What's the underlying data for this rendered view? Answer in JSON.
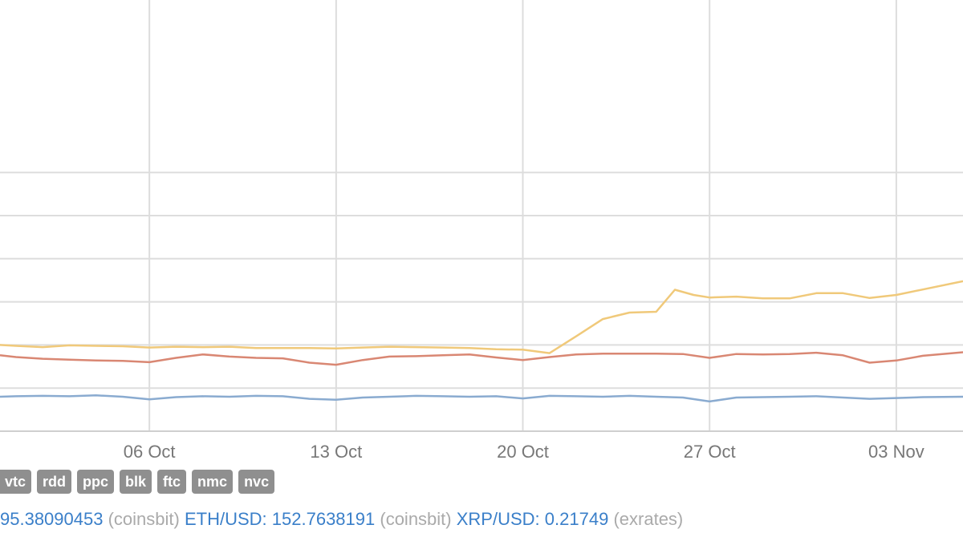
{
  "chart_data": {
    "type": "line",
    "x_ticks": [
      "06 Oct",
      "13 Oct",
      "20 Oct",
      "27 Oct",
      "03 Nov"
    ],
    "x_tick_days": [
      5,
      12,
      19,
      26,
      33
    ],
    "x_domain_days": [
      -0.6,
      35.5
    ],
    "y_range": [
      0,
      100
    ],
    "y_gridlines": [
      10,
      20,
      30,
      40,
      50,
      60
    ],
    "grid": true,
    "series": [
      {
        "color": "#f0c97a",
        "points": [
          [
            -0.6,
            20.0
          ],
          [
            0,
            19.8
          ],
          [
            1,
            19.5
          ],
          [
            2,
            19.9
          ],
          [
            3,
            19.8
          ],
          [
            4,
            19.7
          ],
          [
            5,
            19.4
          ],
          [
            6,
            19.6
          ],
          [
            7,
            19.5
          ],
          [
            8,
            19.6
          ],
          [
            9,
            19.3
          ],
          [
            10,
            19.3
          ],
          [
            11,
            19.3
          ],
          [
            12,
            19.2
          ],
          [
            13,
            19.4
          ],
          [
            14,
            19.6
          ],
          [
            15,
            19.5
          ],
          [
            16,
            19.4
          ],
          [
            17,
            19.3
          ],
          [
            18,
            19.0
          ],
          [
            19,
            18.9
          ],
          [
            20,
            18.1
          ],
          [
            21,
            22.0
          ],
          [
            22,
            26.0
          ],
          [
            23,
            27.5
          ],
          [
            24,
            27.7
          ],
          [
            24.7,
            32.8
          ],
          [
            25.4,
            31.6
          ],
          [
            26,
            31.0
          ],
          [
            27,
            31.2
          ],
          [
            28,
            30.8
          ],
          [
            29,
            30.8
          ],
          [
            30,
            32.0
          ],
          [
            31,
            32.0
          ],
          [
            32,
            30.9
          ],
          [
            33,
            31.6
          ],
          [
            35.5,
            34.8
          ]
        ]
      },
      {
        "color": "#d98773",
        "points": [
          [
            -0.6,
            17.6
          ],
          [
            0,
            17.2
          ],
          [
            1,
            16.8
          ],
          [
            2,
            16.6
          ],
          [
            3,
            16.4
          ],
          [
            4,
            16.3
          ],
          [
            5,
            16.0
          ],
          [
            6,
            17.0
          ],
          [
            7,
            17.8
          ],
          [
            8,
            17.3
          ],
          [
            9,
            17.0
          ],
          [
            10,
            16.9
          ],
          [
            11,
            15.9
          ],
          [
            12,
            15.4
          ],
          [
            13,
            16.5
          ],
          [
            14,
            17.3
          ],
          [
            15,
            17.4
          ],
          [
            16,
            17.6
          ],
          [
            17,
            17.8
          ],
          [
            18,
            17.1
          ],
          [
            19,
            16.5
          ],
          [
            20,
            17.2
          ],
          [
            21,
            17.8
          ],
          [
            22,
            18.0
          ],
          [
            23,
            18.0
          ],
          [
            24,
            18.0
          ],
          [
            25,
            17.9
          ],
          [
            26,
            17.0
          ],
          [
            27,
            17.9
          ],
          [
            28,
            17.8
          ],
          [
            29,
            17.9
          ],
          [
            30,
            18.2
          ],
          [
            31,
            17.6
          ],
          [
            32,
            15.9
          ],
          [
            33,
            16.4
          ],
          [
            34,
            17.5
          ],
          [
            35.5,
            18.3
          ]
        ]
      },
      {
        "color": "#8aabd0",
        "points": [
          [
            -0.6,
            8.0
          ],
          [
            0,
            8.1
          ],
          [
            1,
            8.2
          ],
          [
            2,
            8.1
          ],
          [
            3,
            8.3
          ],
          [
            4,
            8.0
          ],
          [
            5,
            7.4
          ],
          [
            6,
            7.9
          ],
          [
            7,
            8.1
          ],
          [
            8,
            8.0
          ],
          [
            9,
            8.2
          ],
          [
            10,
            8.1
          ],
          [
            11,
            7.5
          ],
          [
            12,
            7.3
          ],
          [
            13,
            7.8
          ],
          [
            14,
            8.0
          ],
          [
            15,
            8.2
          ],
          [
            16,
            8.1
          ],
          [
            17,
            8.0
          ],
          [
            18,
            8.1
          ],
          [
            19,
            7.6
          ],
          [
            20,
            8.2
          ],
          [
            21,
            8.1
          ],
          [
            22,
            8.0
          ],
          [
            23,
            8.2
          ],
          [
            24,
            8.0
          ],
          [
            25,
            7.8
          ],
          [
            26,
            6.9
          ],
          [
            27,
            7.8
          ],
          [
            28,
            7.9
          ],
          [
            29,
            8.0
          ],
          [
            30,
            8.1
          ],
          [
            31,
            7.8
          ],
          [
            32,
            7.5
          ],
          [
            33,
            7.7
          ],
          [
            34,
            7.9
          ],
          [
            35.5,
            8.0
          ]
        ]
      }
    ]
  },
  "tags": [
    "vtc",
    "rdd",
    "ppc",
    "blk",
    "ftc",
    "nmc",
    "nvc"
  ],
  "ticker": [
    {
      "pair": "",
      "value": "95.38090453",
      "source": "(coinsbit)"
    },
    {
      "pair": "ETH/USD:",
      "value": "152.7638191",
      "source": "(coinsbit)"
    },
    {
      "pair": "XRP/USD:",
      "value": "0.21749",
      "source": "(exrates)"
    }
  ]
}
